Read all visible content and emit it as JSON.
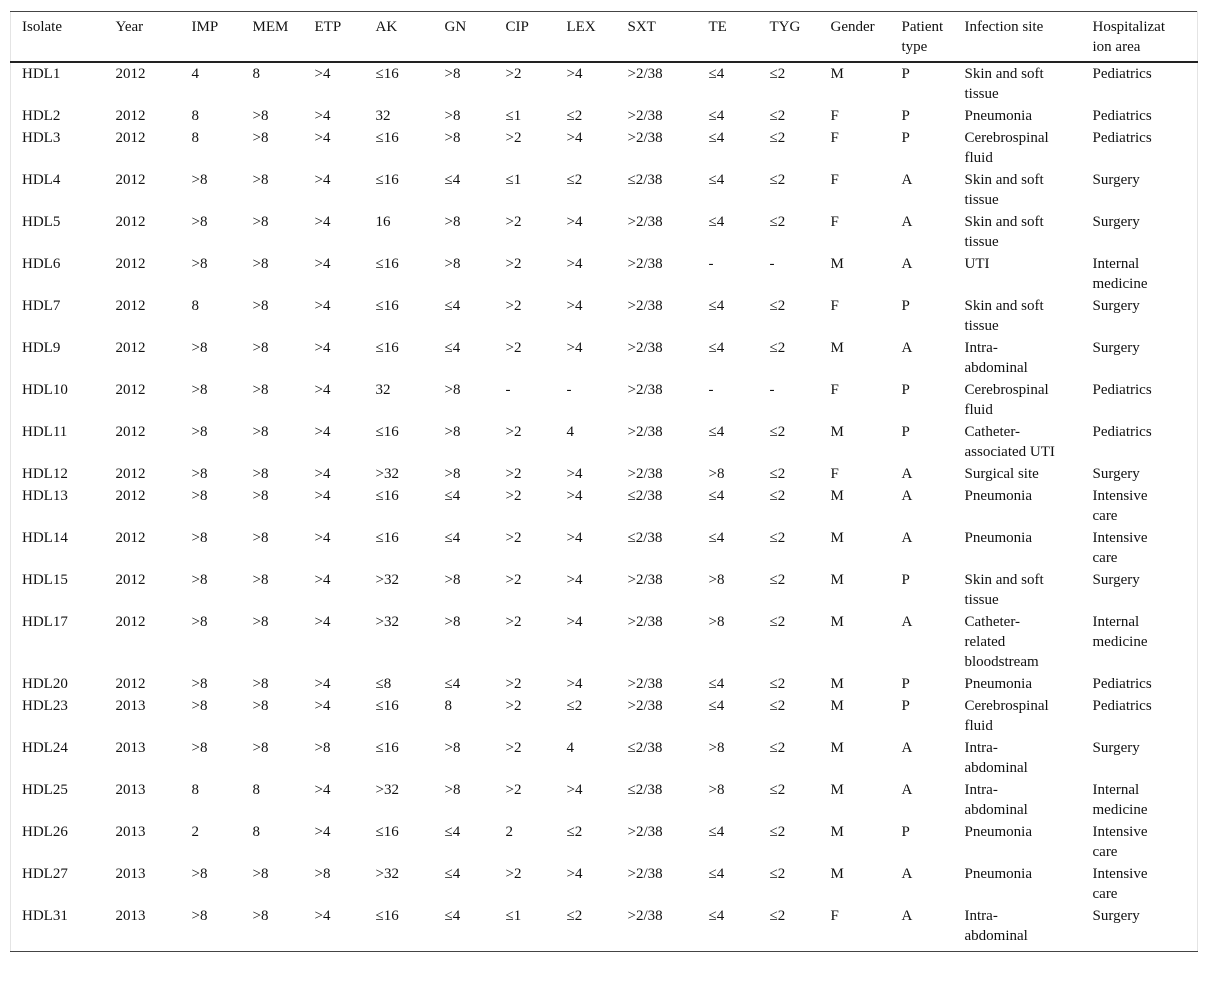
{
  "table": {
    "headers": [
      "Isolate",
      "Year",
      "IMP",
      "MEM",
      "ETP",
      "AK",
      "GN",
      "CIP",
      "LEX",
      "SXT",
      "TE",
      "TYG",
      "Gender",
      "Patient type",
      "Infection site",
      "Hospitalization area"
    ],
    "rows": [
      [
        "HDL1",
        "2012",
        "4",
        "8",
        ">4",
        "≤16",
        ">8",
        ">2",
        ">4",
        ">2/38",
        "≤4",
        "≤2",
        "M",
        "P",
        "Skin and soft tissue",
        "Pediatrics"
      ],
      [
        "HDL2",
        "2012",
        "8",
        ">8",
        ">4",
        "32",
        ">8",
        "≤1",
        "≤2",
        ">2/38",
        "≤4",
        "≤2",
        "F",
        "P",
        "Pneumonia",
        "Pediatrics"
      ],
      [
        "HDL3",
        "2012",
        "8",
        ">8",
        ">4",
        "≤16",
        ">8",
        ">2",
        ">4",
        ">2/38",
        "≤4",
        "≤2",
        "F",
        "P",
        "Cerebrospinal fluid",
        "Pediatrics"
      ],
      [
        "HDL4",
        "2012",
        ">8",
        ">8",
        ">4",
        "≤16",
        "≤4",
        "≤1",
        "≤2",
        "≤2/38",
        "≤4",
        "≤2",
        "F",
        "A",
        "Skin and soft tissue",
        "Surgery"
      ],
      [
        "HDL5",
        "2012",
        ">8",
        ">8",
        ">4",
        "16",
        ">8",
        ">2",
        ">4",
        ">2/38",
        "≤4",
        "≤2",
        "F",
        "A",
        "Skin and soft tissue",
        "Surgery"
      ],
      [
        "HDL6",
        "2012",
        ">8",
        ">8",
        ">4",
        "≤16",
        ">8",
        ">2",
        ">4",
        ">2/38",
        "-",
        "-",
        "M",
        "A",
        "UTI",
        "Internal medicine"
      ],
      [
        "HDL7",
        "2012",
        "8",
        ">8",
        ">4",
        "≤16",
        "≤4",
        ">2",
        ">4",
        ">2/38",
        "≤4",
        "≤2",
        "F",
        "P",
        "Skin and soft tissue",
        "Surgery"
      ],
      [
        "HDL9",
        "2012",
        ">8",
        ">8",
        ">4",
        "≤16",
        "≤4",
        ">2",
        ">4",
        ">2/38",
        "≤4",
        "≤2",
        "M",
        "A",
        "Intra-abdominal",
        "Surgery"
      ],
      [
        "HDL10",
        "2012",
        ">8",
        ">8",
        ">4",
        "32",
        ">8",
        "-",
        "-",
        ">2/38",
        "-",
        "-",
        "F",
        "P",
        "Cerebrospinal fluid",
        "Pediatrics"
      ],
      [
        "HDL11",
        "2012",
        ">8",
        ">8",
        ">4",
        "≤16",
        ">8",
        ">2",
        "4",
        ">2/38",
        "≤4",
        "≤2",
        "M",
        "P",
        "Catheter-associated UTI",
        "Pediatrics"
      ],
      [
        "HDL12",
        "2012",
        ">8",
        ">8",
        ">4",
        ">32",
        ">8",
        ">2",
        ">4",
        ">2/38",
        ">8",
        "≤2",
        "F",
        "A",
        "Surgical site",
        "Surgery"
      ],
      [
        "HDL13",
        "2012",
        ">8",
        ">8",
        ">4",
        "≤16",
        "≤4",
        ">2",
        ">4",
        "≤2/38",
        "≤4",
        "≤2",
        "M",
        "A",
        "Pneumonia",
        "Intensive care"
      ],
      [
        "HDL14",
        "2012",
        ">8",
        ">8",
        ">4",
        "≤16",
        "≤4",
        ">2",
        ">4",
        "≤2/38",
        "≤4",
        "≤2",
        "M",
        "A",
        "Pneumonia",
        "Intensive care"
      ],
      [
        "HDL15",
        "2012",
        ">8",
        ">8",
        ">4",
        ">32",
        ">8",
        ">2",
        ">4",
        ">2/38",
        ">8",
        "≤2",
        "M",
        "P",
        "Skin and soft tissue",
        "Surgery"
      ],
      [
        "HDL17",
        "2012",
        ">8",
        ">8",
        ">4",
        ">32",
        ">8",
        ">2",
        ">4",
        ">2/38",
        ">8",
        "≤2",
        "M",
        "A",
        "Catheter-related bloodstream",
        "Internal medicine"
      ],
      [
        "HDL20",
        "2012",
        ">8",
        ">8",
        ">4",
        "≤8",
        "≤4",
        ">2",
        ">4",
        ">2/38",
        "≤4",
        "≤2",
        "M",
        "P",
        "Pneumonia",
        "Pediatrics"
      ],
      [
        "HDL23",
        "2013",
        ">8",
        ">8",
        ">4",
        "≤16",
        "8",
        ">2",
        "≤2",
        ">2/38",
        "≤4",
        "≤2",
        "M",
        "P",
        "Cerebrospinal fluid",
        "Pediatrics"
      ],
      [
        "HDL24",
        "2013",
        ">8",
        ">8",
        ">8",
        "≤16",
        ">8",
        ">2",
        "4",
        "≤2/38",
        ">8",
        "≤2",
        "M",
        "A",
        "Intra-abdominal",
        "Surgery"
      ],
      [
        "HDL25",
        "2013",
        "8",
        "8",
        ">4",
        ">32",
        ">8",
        ">2",
        ">4",
        "≤2/38",
        ">8",
        "≤2",
        "M",
        "A",
        "Intra-abdominal",
        "Internal medicine"
      ],
      [
        "HDL26",
        "2013",
        "2",
        "8",
        ">4",
        "≤16",
        "≤4",
        "2",
        "≤2",
        ">2/38",
        "≤4",
        "≤2",
        "M",
        "P",
        "Pneumonia",
        "Intensive care"
      ],
      [
        "HDL27",
        "2013",
        ">8",
        ">8",
        ">8",
        ">32",
        "≤4",
        ">2",
        ">4",
        ">2/38",
        "≤4",
        "≤2",
        "M",
        "A",
        "Pneumonia",
        "Intensive care"
      ],
      [
        "HDL31",
        "2013",
        ">8",
        ">8",
        ">4",
        "≤16",
        "≤4",
        "≤1",
        "≤2",
        ">2/38",
        "≤4",
        "≤2",
        "F",
        "A",
        "Intra-abdominal",
        "Surgery"
      ]
    ]
  }
}
